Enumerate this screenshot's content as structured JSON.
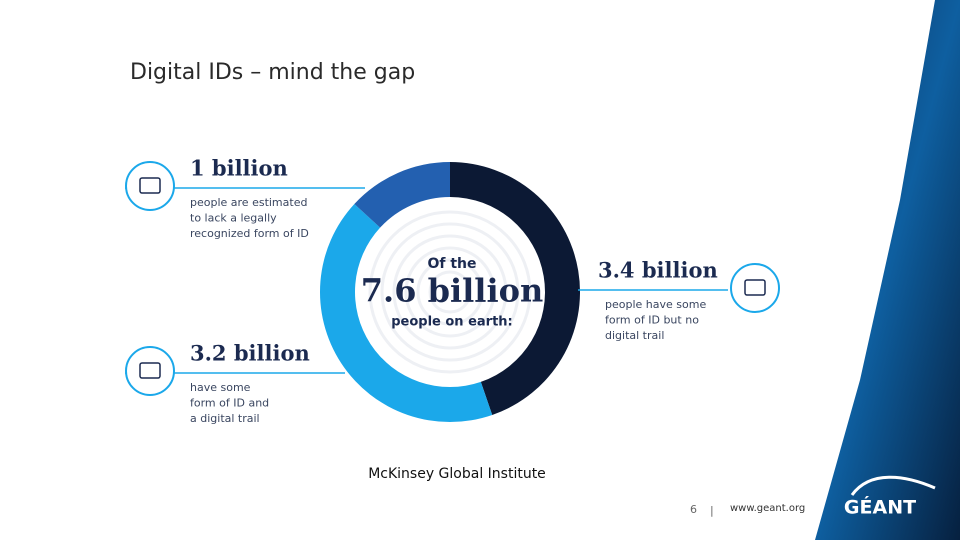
{
  "title": "Digital IDs – mind the gap",
  "chart_data": {
    "type": "donut",
    "center_lines": [
      "Of the",
      "7.6 billion",
      "people on earth:"
    ],
    "values": [
      3.4,
      3.2,
      1
    ],
    "value_labels": [
      "3.4 billion",
      "3.2 billion",
      "1 billion"
    ],
    "descriptions": [
      [
        "people have some",
        "form of ID but no",
        "digital trail"
      ],
      [
        "have some",
        "form of ID and",
        "a digital trail"
      ],
      [
        "people are estimated",
        "to lack a legally",
        "recognized form of ID"
      ]
    ],
    "colors": [
      "#0c1934",
      "#1ba8ea",
      "#2360b0"
    ]
  },
  "source": "McKinsey Global Institute",
  "footer": {
    "page": "6",
    "separator": "|",
    "url": "www.geant.org",
    "logo": "GÉANT"
  }
}
